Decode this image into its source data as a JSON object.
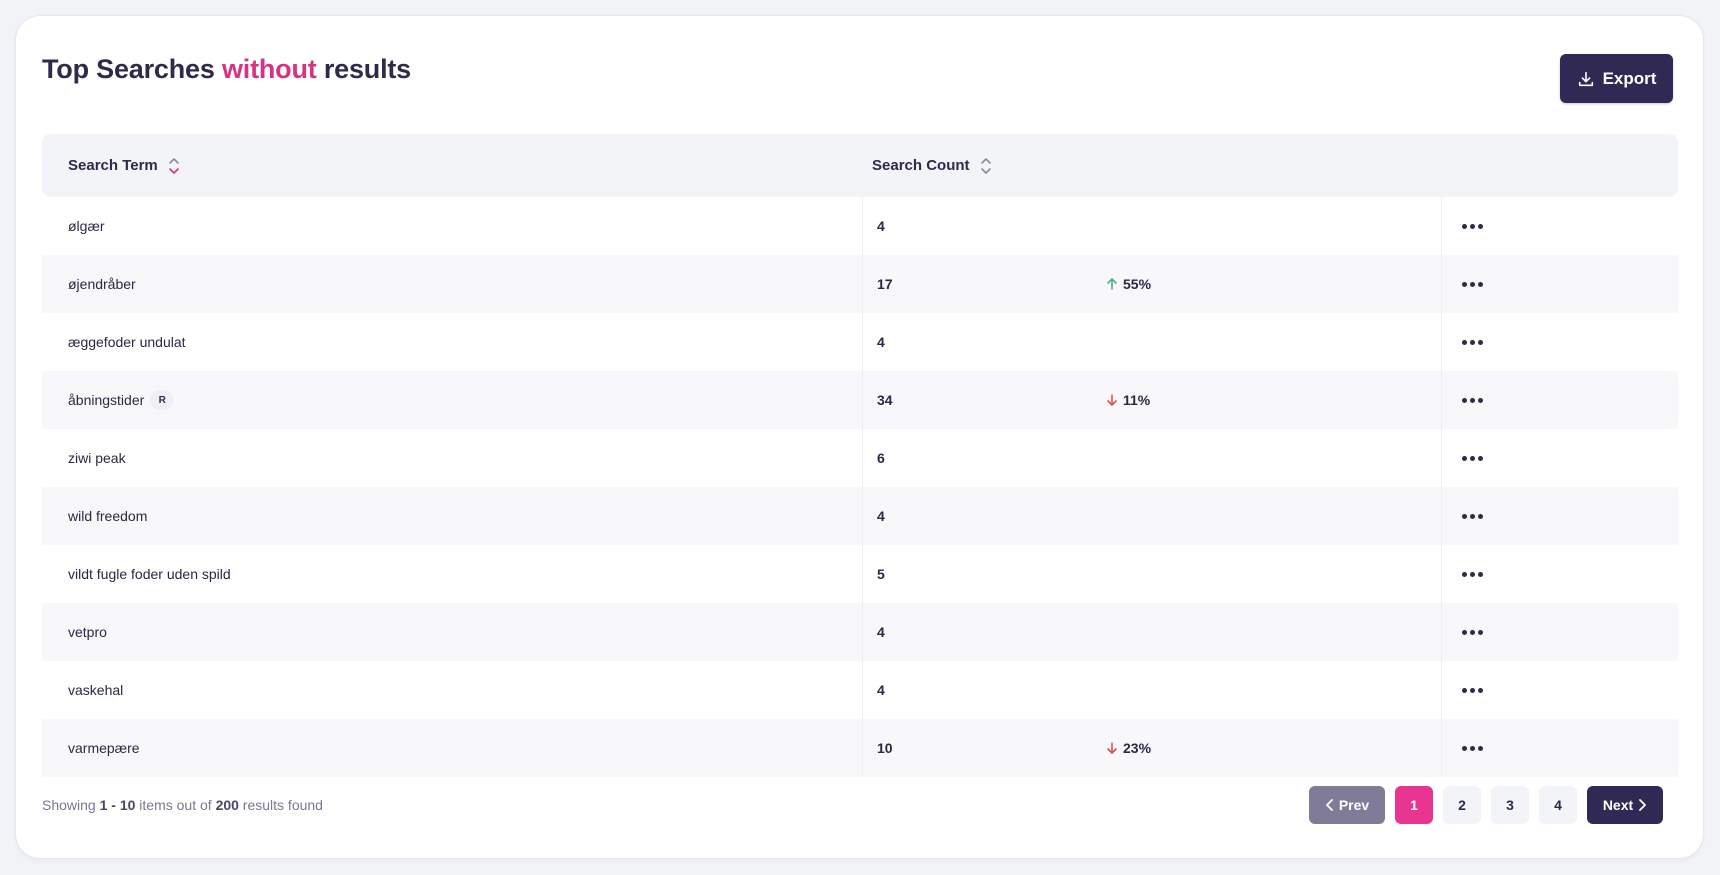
{
  "header": {
    "title_prefix": "Top Searches ",
    "title_accent": "without",
    "title_suffix": " results",
    "export_label": "Export"
  },
  "table": {
    "columns": [
      {
        "label": "Search Term",
        "sort_icon": "sort-icon"
      },
      {
        "label": "Search Count",
        "sort_icon": "sort-icon"
      }
    ],
    "rows": [
      {
        "term": "ølgær",
        "count": "4",
        "trend": "",
        "trend_dir": "",
        "badge": ""
      },
      {
        "term": "øjendråber",
        "count": "17",
        "trend": "55%",
        "trend_dir": "up",
        "badge": ""
      },
      {
        "term": "æggefoder undulat",
        "count": "4",
        "trend": "",
        "trend_dir": "",
        "badge": ""
      },
      {
        "term": "åbningstider",
        "count": "34",
        "trend": "11%",
        "trend_dir": "down",
        "badge": "R"
      },
      {
        "term": "ziwi peak",
        "count": "6",
        "trend": "",
        "trend_dir": "",
        "badge": ""
      },
      {
        "term": "wild freedom",
        "count": "4",
        "trend": "",
        "trend_dir": "",
        "badge": ""
      },
      {
        "term": "vildt fugle foder uden spild",
        "count": "5",
        "trend": "",
        "trend_dir": "",
        "badge": ""
      },
      {
        "term": "vetpro",
        "count": "4",
        "trend": "",
        "trend_dir": "",
        "badge": ""
      },
      {
        "term": "vaskehal",
        "count": "4",
        "trend": "",
        "trend_dir": "",
        "badge": ""
      },
      {
        "term": "varmepære",
        "count": "10",
        "trend": "23%",
        "trend_dir": "down",
        "badge": ""
      }
    ]
  },
  "footer": {
    "showing_prefix": "Showing ",
    "range": "1 - 10",
    "items_out_of": " items out of ",
    "total": "200",
    "results_found": " results found"
  },
  "pagination": {
    "prev_label": "Prev",
    "next_label": "Next",
    "pages": [
      "1",
      "2",
      "3",
      "4"
    ],
    "current": "1"
  },
  "colors": {
    "accent": "#d63384",
    "primary": "#2f2953",
    "active_page": "#e83591",
    "trend_up": "#4bb58a",
    "trend_down": "#d9534f"
  }
}
